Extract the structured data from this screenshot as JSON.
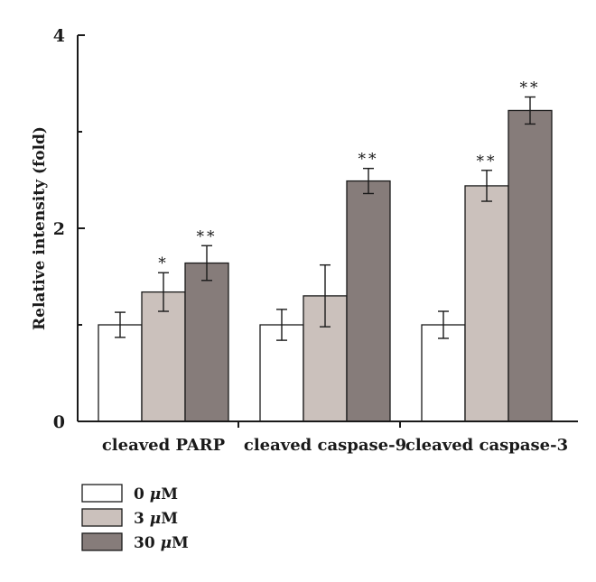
{
  "chart_data": {
    "type": "bar",
    "ylabel": "Relative intensity (fold)",
    "ylim": [
      0,
      4
    ],
    "yticks": [
      "0",
      "2",
      "4"
    ],
    "categories": [
      "cleaved PARP",
      "cleaved caspase-9",
      "cleaved caspase-3"
    ],
    "series": [
      {
        "name": "0 μM",
        "color": "#ffffff",
        "values": [
          1.0,
          1.0,
          1.0
        ],
        "errors": [
          0.13,
          0.16,
          0.14
        ],
        "significance": [
          "",
          "",
          ""
        ]
      },
      {
        "name": "3 μM",
        "color": "#cbc1bc",
        "values": [
          1.34,
          1.3,
          2.44
        ],
        "errors": [
          0.2,
          0.32,
          0.16
        ],
        "significance": [
          "*",
          "",
          "**"
        ]
      },
      {
        "name": "30 μM",
        "color": "#867c7a",
        "values": [
          1.64,
          2.49,
          3.22
        ],
        "errors": [
          0.18,
          0.13,
          0.14
        ],
        "significance": [
          "**",
          "**",
          "**"
        ]
      }
    ],
    "legend": {
      "placement": "bottom-left"
    },
    "grid": false
  }
}
